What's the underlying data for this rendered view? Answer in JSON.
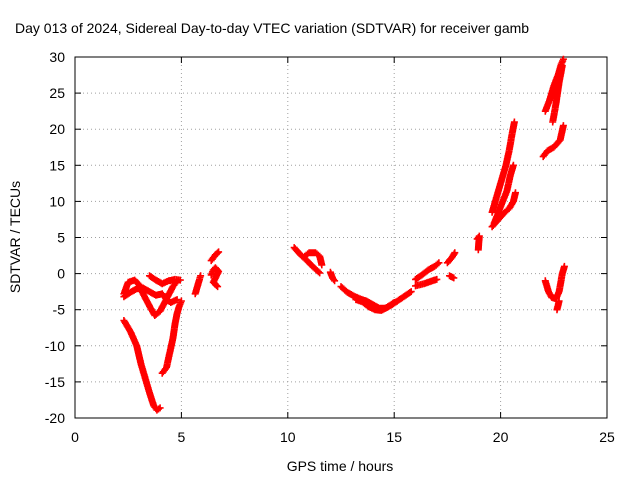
{
  "chart_data": {
    "type": "scatter",
    "title": "Day 013 of 2024, Sidereal Day-to-day VTEC variation (SDTVAR) for receiver gamb",
    "xlabel": "GPS time / hours",
    "ylabel": "SDTVAR / TECUs",
    "xlim": [
      0,
      25
    ],
    "ylim": [
      -20,
      30
    ],
    "xticks": [
      0,
      5,
      10,
      15,
      20,
      25
    ],
    "yticks": [
      -20,
      -15,
      -10,
      -5,
      0,
      5,
      10,
      15,
      20,
      25,
      30
    ],
    "grid": true,
    "marker": "plus",
    "color": "#ff0000",
    "segments": [
      [
        [
          2.3,
          -6.5
        ],
        [
          2.6,
          -8
        ],
        [
          2.9,
          -10
        ],
        [
          3.1,
          -12.5
        ],
        [
          3.3,
          -14.5
        ],
        [
          3.5,
          -16.5
        ],
        [
          3.7,
          -18.3
        ],
        [
          3.85,
          -18.9
        ],
        [
          4.0,
          -18.6
        ]
      ],
      [
        [
          2.3,
          -2.8
        ],
        [
          2.5,
          -1.2
        ],
        [
          2.8,
          -0.9
        ],
        [
          3.0,
          -1.5
        ],
        [
          3.2,
          -2.8
        ],
        [
          3.5,
          -4.5
        ],
        [
          3.75,
          -5.8
        ],
        [
          4.0,
          -5.2
        ],
        [
          4.3,
          -3.5
        ],
        [
          4.6,
          -1.8
        ],
        [
          4.8,
          -1.0
        ]
      ],
      [
        [
          2.3,
          -3.2
        ],
        [
          2.6,
          -2.6
        ],
        [
          2.9,
          -2.1
        ],
        [
          3.2,
          -2.0
        ],
        [
          3.5,
          -2.5
        ],
        [
          3.8,
          -3.0
        ],
        [
          4.1,
          -2.8
        ],
        [
          4.3,
          -3.6
        ],
        [
          4.5,
          -4.0
        ],
        [
          4.8,
          -3.6
        ]
      ],
      [
        [
          3.5,
          -0.3
        ],
        [
          3.8,
          -0.9
        ],
        [
          4.1,
          -1.4
        ],
        [
          4.4,
          -1.0
        ],
        [
          4.7,
          -0.8
        ],
        [
          4.95,
          -0.9
        ]
      ],
      [
        [
          4.1,
          -13.8
        ],
        [
          4.3,
          -13.0
        ],
        [
          4.45,
          -11.0
        ],
        [
          4.6,
          -9.0
        ],
        [
          4.7,
          -7.0
        ],
        [
          4.8,
          -5.5
        ],
        [
          4.9,
          -4.5
        ],
        [
          5.0,
          -3.8
        ]
      ],
      [
        [
          5.65,
          -2.8
        ],
        [
          5.75,
          -1.8
        ],
        [
          5.85,
          -0.8
        ],
        [
          5.9,
          -0.3
        ]
      ],
      [
        [
          6.4,
          -0.2
        ],
        [
          6.5,
          0.5
        ],
        [
          6.6,
          0.8
        ],
        [
          6.75,
          0.3
        ],
        [
          6.5,
          -1.2
        ],
        [
          6.7,
          -1.8
        ]
      ],
      [
        [
          6.4,
          1.8
        ],
        [
          6.6,
          2.6
        ],
        [
          6.75,
          3.0
        ]
      ],
      [
        [
          10.3,
          3.6
        ],
        [
          10.6,
          2.6
        ],
        [
          10.9,
          1.8
        ],
        [
          11.2,
          0.9
        ],
        [
          11.5,
          0.1
        ]
      ],
      [
        [
          10.8,
          2.4
        ],
        [
          11.0,
          2.9
        ],
        [
          11.3,
          2.9
        ],
        [
          11.5,
          2.4
        ],
        [
          11.6,
          1.2
        ]
      ],
      [
        [
          12.0,
          0.2
        ],
        [
          12.1,
          -0.6
        ],
        [
          12.2,
          -1.0
        ]
      ],
      [
        [
          12.5,
          -1.8
        ],
        [
          12.8,
          -2.6
        ],
        [
          13.1,
          -3.1
        ],
        [
          13.4,
          -3.5
        ],
        [
          13.7,
          -3.8
        ],
        [
          14.0,
          -4.3
        ],
        [
          14.3,
          -4.8
        ],
        [
          14.6,
          -4.8
        ],
        [
          14.9,
          -4.3
        ],
        [
          15.2,
          -3.7
        ],
        [
          15.5,
          -3.1
        ],
        [
          15.8,
          -2.5
        ]
      ],
      [
        [
          13.2,
          -3.6
        ],
        [
          13.5,
          -3.9
        ],
        [
          13.8,
          -4.6
        ],
        [
          14.1,
          -5.0
        ],
        [
          14.4,
          -5.1
        ],
        [
          14.7,
          -4.6
        ],
        [
          15.0,
          -4.0
        ]
      ],
      [
        [
          16.0,
          -0.8
        ],
        [
          16.3,
          -0.2
        ],
        [
          16.6,
          0.5
        ],
        [
          16.9,
          1.0
        ],
        [
          17.1,
          1.5
        ]
      ],
      [
        [
          16.0,
          -1.7
        ],
        [
          16.4,
          -1.4
        ],
        [
          16.8,
          -1.0
        ],
        [
          17.0,
          -0.8
        ]
      ],
      [
        [
          17.5,
          1.5
        ],
        [
          17.7,
          2.2
        ],
        [
          17.85,
          2.9
        ]
      ],
      [
        [
          17.6,
          -0.3
        ],
        [
          17.8,
          -0.6
        ]
      ],
      [
        [
          18.9,
          4.8
        ],
        [
          19.0,
          5.2
        ],
        [
          18.95,
          3.3
        ]
      ],
      [
        [
          19.6,
          8.5
        ],
        [
          19.8,
          10.5
        ],
        [
          19.95,
          12.0
        ],
        [
          20.1,
          13.5
        ],
        [
          20.25,
          15.0
        ],
        [
          20.4,
          17.0
        ],
        [
          20.55,
          19.5
        ],
        [
          20.65,
          21.0
        ]
      ],
      [
        [
          19.7,
          7.0
        ],
        [
          19.9,
          8.5
        ],
        [
          20.1,
          10.0
        ],
        [
          20.3,
          11.5
        ],
        [
          20.45,
          13.5
        ],
        [
          20.6,
          15.0
        ]
      ],
      [
        [
          19.6,
          6.5
        ],
        [
          19.9,
          7.5
        ],
        [
          20.2,
          8.5
        ],
        [
          20.4,
          9.0
        ],
        [
          20.6,
          10.0
        ],
        [
          20.7,
          11.2
        ]
      ],
      [
        [
          22.0,
          16.2
        ],
        [
          22.2,
          17.0
        ],
        [
          22.5,
          17.5
        ],
        [
          22.8,
          18.5
        ],
        [
          22.95,
          20.5
        ]
      ],
      [
        [
          22.1,
          22.5
        ],
        [
          22.3,
          24.0
        ],
        [
          22.5,
          26.0
        ],
        [
          22.7,
          27.5
        ],
        [
          22.85,
          29.0
        ],
        [
          22.95,
          29.7
        ]
      ],
      [
        [
          22.45,
          21.0
        ],
        [
          22.6,
          23.5
        ],
        [
          22.75,
          26.5
        ],
        [
          22.9,
          28.8
        ]
      ],
      [
        [
          22.1,
          -1.0
        ],
        [
          22.25,
          -2.5
        ],
        [
          22.4,
          -3.3
        ],
        [
          22.6,
          -3.5
        ],
        [
          22.75,
          -2.5
        ],
        [
          22.9,
          0.0
        ],
        [
          23.0,
          1.0
        ]
      ],
      [
        [
          22.65,
          -5.0
        ],
        [
          22.75,
          -3.8
        ]
      ]
    ]
  }
}
